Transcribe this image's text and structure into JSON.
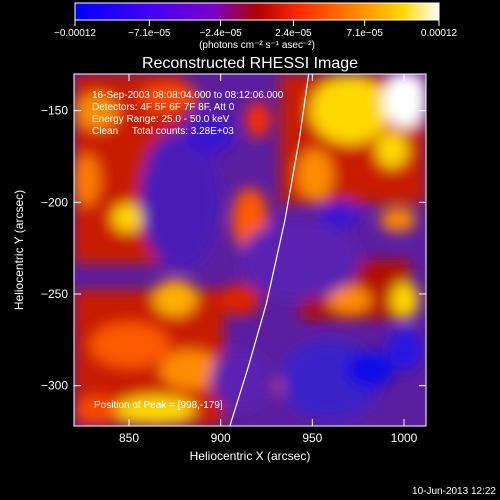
{
  "chart_data": {
    "type": "heatmap",
    "title": "Reconstructed RHESSI Image",
    "xlabel": "Heliocentric X (arcsec)",
    "ylabel": "Heliocentric Y (arcsec)",
    "xlim": [
      820,
      1012
    ],
    "ylim": [
      -322,
      -130
    ],
    "x_ticks": [
      850,
      900,
      950,
      1000
    ],
    "x_tick_labels": [
      "850",
      "900",
      "950",
      "1000"
    ],
    "y_ticks": [
      -150,
      -200,
      -250,
      -300
    ],
    "y_tick_labels": [
      "−150",
      "−200",
      "−250",
      "−300"
    ],
    "colorbar": {
      "ticks": [
        -0.00012,
        -7.1e-05,
        -2.4e-05,
        2.4e-05,
        7.1e-05,
        0.00012
      ],
      "tick_labels": [
        "−0.00012",
        "−7.1e−05",
        "−2.4e−05",
        "2.4e−05",
        "7.1e−05",
        "0.00012"
      ],
      "units": "(photons cm⁻² s⁻¹ asec⁻²)",
      "colors": [
        "#0000ff",
        "#3a00ff",
        "#7a00c8",
        "#b00000",
        "#ff2d00",
        "#ff8c00",
        "#ffd800",
        "#ffffff"
      ]
    },
    "annotations": [
      "16-Sep-2003 08:08:04.000 to 08:12:06.000",
      "Detectors: 4F 5F 6F 7F 8F, Att 0",
      "Energy Range: 25.0 - 50.0 keV",
      "Clean     Total counts: 3.28E+03"
    ],
    "peak_label": "Position of Peak = [998,-179]",
    "limb_curve": [
      [
        905,
        -322
      ],
      [
        915,
        -290
      ],
      [
        925,
        -255
      ],
      [
        935,
        -210
      ],
      [
        943,
        -165
      ],
      [
        948,
        -130
      ]
    ]
  },
  "footer": {
    "timestamp": "10-Jun-2013 12:22"
  }
}
